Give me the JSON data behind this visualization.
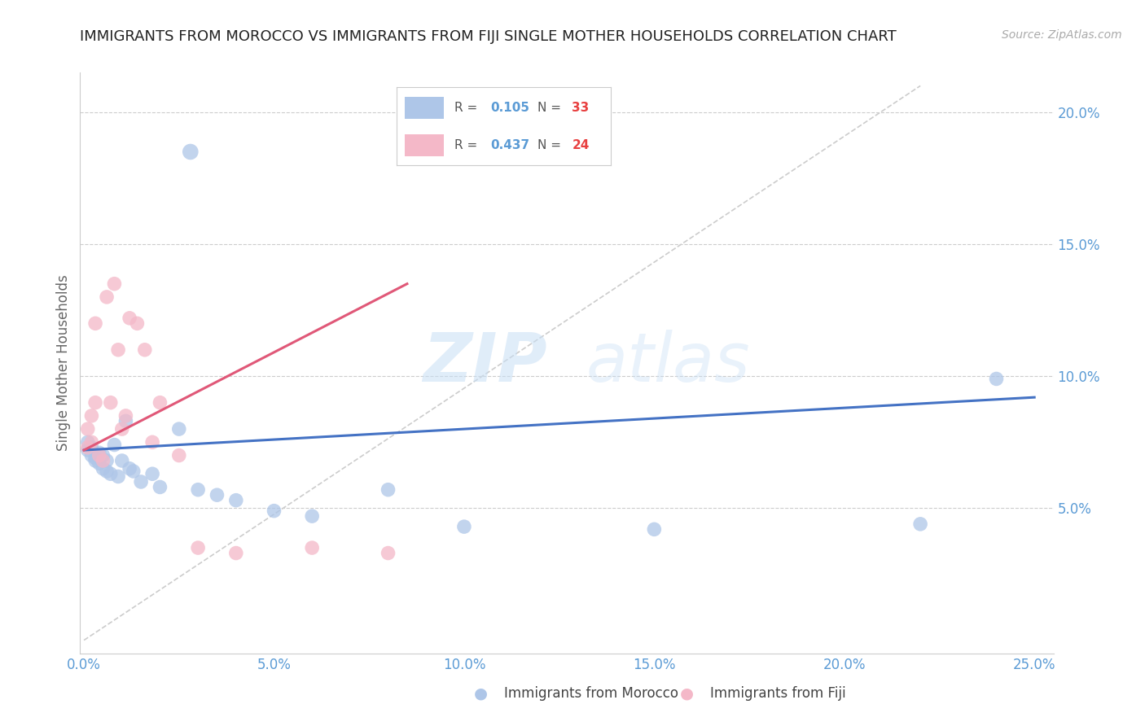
{
  "title": "IMMIGRANTS FROM MOROCCO VS IMMIGRANTS FROM FIJI SINGLE MOTHER HOUSEHOLDS CORRELATION CHART",
  "source": "Source: ZipAtlas.com",
  "ylabel": "Single Mother Households",
  "xlim": [
    -0.001,
    0.255
  ],
  "ylim": [
    -0.005,
    0.215
  ],
  "xticks": [
    0.0,
    0.05,
    0.1,
    0.15,
    0.2,
    0.25
  ],
  "yticks": [
    0.05,
    0.1,
    0.15,
    0.2
  ],
  "ytick_labels": [
    "5.0%",
    "10.0%",
    "15.0%",
    "20.0%"
  ],
  "xtick_labels": [
    "0.0%",
    "5.0%",
    "10.0%",
    "15.0%",
    "20.0%",
    "25.0%"
  ],
  "morocco_R": 0.105,
  "morocco_N": 33,
  "fiji_R": 0.437,
  "fiji_N": 24,
  "morocco_color": "#aec6e8",
  "fiji_color": "#f4b8c8",
  "morocco_line_color": "#4472c4",
  "fiji_line_color": "#e05878",
  "watermark_zip": "ZIP",
  "watermark_atlas": "atlas",
  "legend_label_morocco": "Immigrants from Morocco",
  "legend_label_fiji": "Immigrants from Fiji",
  "morocco_x": [
    0.001,
    0.001,
    0.002,
    0.002,
    0.003,
    0.003,
    0.004,
    0.004,
    0.005,
    0.005,
    0.006,
    0.006,
    0.007,
    0.008,
    0.009,
    0.01,
    0.011,
    0.012,
    0.013,
    0.015,
    0.018,
    0.02,
    0.025,
    0.03,
    0.035,
    0.04,
    0.05,
    0.06,
    0.08,
    0.1,
    0.15,
    0.22,
    0.24
  ],
  "morocco_y": [
    0.075,
    0.072,
    0.073,
    0.07,
    0.069,
    0.068,
    0.071,
    0.067,
    0.07,
    0.065,
    0.068,
    0.064,
    0.063,
    0.074,
    0.062,
    0.068,
    0.083,
    0.065,
    0.064,
    0.06,
    0.063,
    0.058,
    0.08,
    0.057,
    0.055,
    0.053,
    0.049,
    0.047,
    0.057,
    0.043,
    0.042,
    0.044,
    0.099
  ],
  "fiji_x": [
    0.001,
    0.001,
    0.002,
    0.002,
    0.003,
    0.003,
    0.004,
    0.005,
    0.006,
    0.007,
    0.008,
    0.009,
    0.01,
    0.011,
    0.012,
    0.014,
    0.016,
    0.018,
    0.02,
    0.025,
    0.03,
    0.04,
    0.06,
    0.08
  ],
  "fiji_y": [
    0.08,
    0.073,
    0.085,
    0.075,
    0.12,
    0.09,
    0.07,
    0.068,
    0.13,
    0.09,
    0.135,
    0.11,
    0.08,
    0.085,
    0.122,
    0.12,
    0.11,
    0.075,
    0.09,
    0.07,
    0.035,
    0.033,
    0.035,
    0.033
  ],
  "morocco_outlier_x": [
    0.028
  ],
  "morocco_outlier_y": [
    0.185
  ],
  "morocco_line_x": [
    0.0,
    0.25
  ],
  "morocco_line_y": [
    0.072,
    0.092
  ],
  "fiji_line_x": [
    0.0,
    0.085
  ],
  "fiji_line_y": [
    0.072,
    0.135
  ],
  "ref_line_x": [
    0.0,
    0.22
  ],
  "ref_line_y": [
    0.0,
    0.21
  ],
  "background_color": "#ffffff",
  "grid_color": "#cccccc",
  "tick_color": "#5b9bd5",
  "title_fontsize": 13,
  "label_fontsize": 12,
  "legend_R_color": "#5b9bd5",
  "legend_N_color": "#e84040"
}
